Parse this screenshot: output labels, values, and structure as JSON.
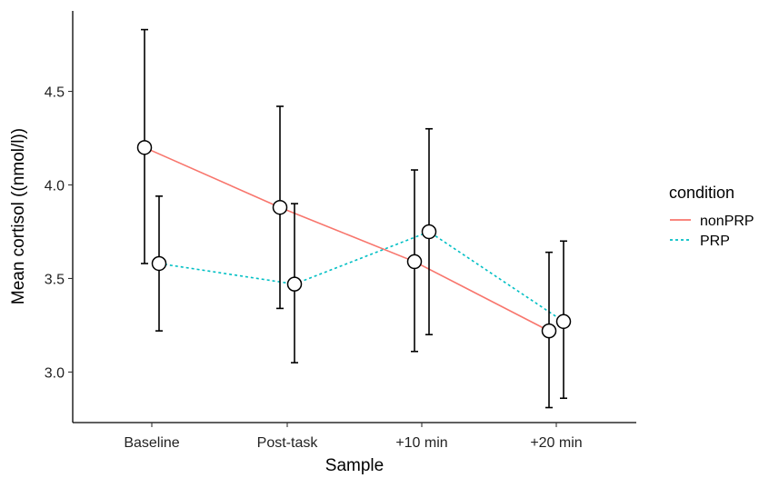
{
  "chart_data": {
    "type": "line",
    "title": "",
    "xlabel": "Sample",
    "ylabel": "Mean cortisol ((nmol/l))",
    "categories": [
      "Baseline",
      "Post-task",
      "+10 min",
      "+20 min"
    ],
    "ylim": [
      2.73,
      4.93
    ],
    "yticks": [
      "3.0",
      "3.5",
      "4.0",
      "4.5"
    ],
    "grid": false,
    "legend": {
      "title": "condition",
      "position": "right"
    },
    "series": [
      {
        "name": "nonPRP",
        "color": "#f8766d",
        "dash": "solid",
        "values": [
          4.2,
          3.88,
          3.59,
          3.22
        ],
        "lower": [
          3.58,
          3.34,
          3.11,
          2.81
        ],
        "upper": [
          4.83,
          4.42,
          4.08,
          3.64
        ]
      },
      {
        "name": "PRP",
        "color": "#00bfc4",
        "dash": "dotted",
        "values": [
          3.58,
          3.47,
          3.75,
          3.27
        ],
        "lower": [
          3.22,
          3.05,
          3.2,
          2.86
        ],
        "upper": [
          3.94,
          3.9,
          4.3,
          3.7
        ]
      }
    ]
  }
}
